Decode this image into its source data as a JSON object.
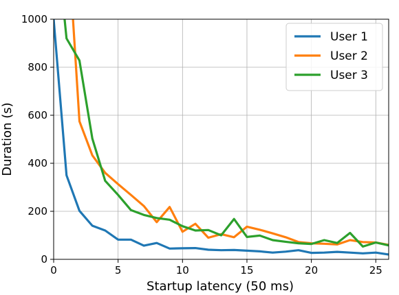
{
  "chart_data": {
    "type": "line",
    "title": "",
    "xlabel": "Startup latency (50 ms)",
    "ylabel": "Duration (s)",
    "xlim": [
      0,
      26
    ],
    "ylim": [
      0,
      1000
    ],
    "x_ticks": [
      0,
      5,
      10,
      15,
      20,
      25
    ],
    "y_ticks": [
      0,
      200,
      400,
      600,
      800,
      1000
    ],
    "grid": true,
    "legend_position": "top-right",
    "series": [
      {
        "name": "User 1",
        "color": "#1f77b4",
        "x": [
          0,
          1,
          2,
          3,
          4,
          5,
          6,
          7,
          8,
          9,
          10,
          11,
          12,
          13,
          14,
          15,
          16,
          17,
          18,
          19,
          20,
          21,
          22,
          23,
          24,
          25,
          26
        ],
        "values": [
          1000,
          350,
          202,
          140,
          120,
          82,
          82,
          57,
          68,
          45,
          46,
          47,
          40,
          38,
          39,
          36,
          33,
          28,
          32,
          38,
          27,
          28,
          31,
          28,
          25,
          28,
          20
        ]
      },
      {
        "name": "User 2",
        "color": "#ff7f0e",
        "x": [
          1.5,
          2,
          3,
          4,
          5,
          6,
          7,
          8,
          9,
          10,
          11,
          12,
          13,
          14,
          15,
          16,
          17,
          18,
          19,
          20,
          21,
          22,
          23,
          24,
          25,
          26
        ],
        "values": [
          1000,
          575,
          433,
          360,
          313,
          268,
          222,
          155,
          218,
          115,
          148,
          90,
          105,
          92,
          136,
          123,
          108,
          92,
          72,
          67,
          65,
          62,
          80,
          72,
          70,
          60
        ]
      },
      {
        "name": "User 3",
        "color": "#2ca02c",
        "x": [
          0.85,
          1,
          2,
          3,
          4,
          5,
          6,
          7,
          8,
          9,
          10,
          11,
          12,
          13,
          14,
          15,
          16,
          17,
          18,
          19,
          20,
          21,
          22,
          23,
          24,
          25,
          26
        ],
        "values": [
          1000,
          920,
          828,
          503,
          327,
          268,
          205,
          185,
          172,
          165,
          138,
          120,
          122,
          100,
          168,
          93,
          99,
          80,
          73,
          67,
          64,
          80,
          68,
          110,
          53,
          70,
          58
        ]
      }
    ]
  }
}
